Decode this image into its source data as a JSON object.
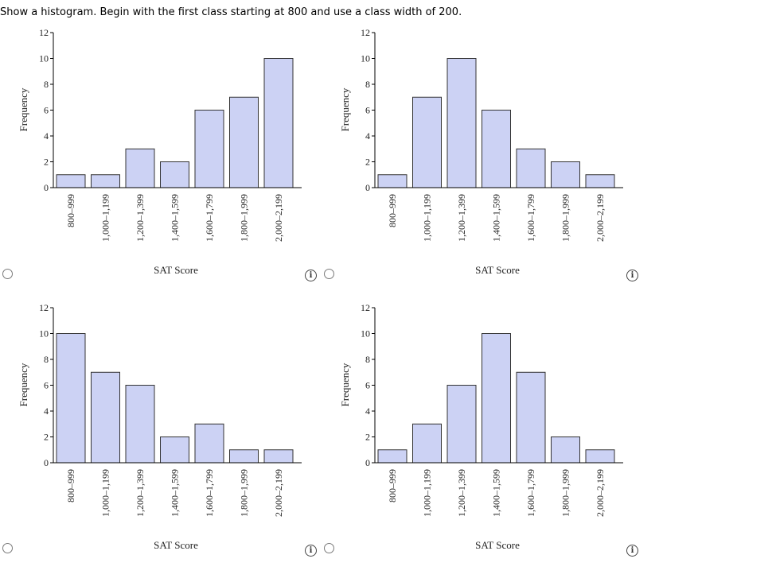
{
  "question": {
    "prompt": "Show a histogram. Begin with the first class starting at 800 and use a class width of 200."
  },
  "info_icon": "i",
  "chart_data": [
    {
      "type": "bar",
      "option": "A",
      "categories": [
        "800–999",
        "1,000–1,199",
        "1,200–1,399",
        "1,400–1,599",
        "1,600–1,799",
        "1,800–1,999",
        "2,000–2,199"
      ],
      "values": [
        1,
        1,
        3,
        2,
        6,
        7,
        10
      ],
      "xlabel": "SAT Score",
      "ylabel": "Frequency",
      "ylim": [
        0,
        12
      ],
      "yticks": [
        "0",
        "2",
        "4",
        "6",
        "8",
        "10",
        "12"
      ]
    },
    {
      "type": "bar",
      "option": "B",
      "categories": [
        "800–999",
        "1,000–1,199",
        "1,200–1,399",
        "1,400–1,599",
        "1,600–1,799",
        "1,800–1,999",
        "2,000–2,199"
      ],
      "values": [
        1,
        7,
        10,
        6,
        3,
        2,
        1
      ],
      "xlabel": "SAT Score",
      "ylabel": "Frequency",
      "ylim": [
        0,
        12
      ],
      "yticks": [
        "0",
        "2",
        "4",
        "6",
        "8",
        "10",
        "12"
      ]
    },
    {
      "type": "bar",
      "option": "C",
      "categories": [
        "800–999",
        "1,000–1,199",
        "1,200–1,399",
        "1,400–1,599",
        "1,600–1,799",
        "1,800–1,999",
        "2,000–2,199"
      ],
      "values": [
        10,
        7,
        6,
        2,
        3,
        1,
        1
      ],
      "xlabel": "SAT Score",
      "ylabel": "Frequency",
      "ylim": [
        0,
        12
      ],
      "yticks": [
        "0",
        "2",
        "4",
        "6",
        "8",
        "10",
        "12"
      ]
    },
    {
      "type": "bar",
      "option": "D",
      "categories": [
        "800–999",
        "1,000–1,199",
        "1,200–1,399",
        "1,400–1,599",
        "1,600–1,799",
        "1,800–1,999",
        "2,000–2,199"
      ],
      "values": [
        1,
        3,
        6,
        10,
        7,
        2,
        1
      ],
      "xlabel": "SAT Score",
      "ylabel": "Frequency",
      "ylim": [
        0,
        12
      ],
      "yticks": [
        "0",
        "2",
        "4",
        "6",
        "8",
        "10",
        "12"
      ]
    }
  ]
}
